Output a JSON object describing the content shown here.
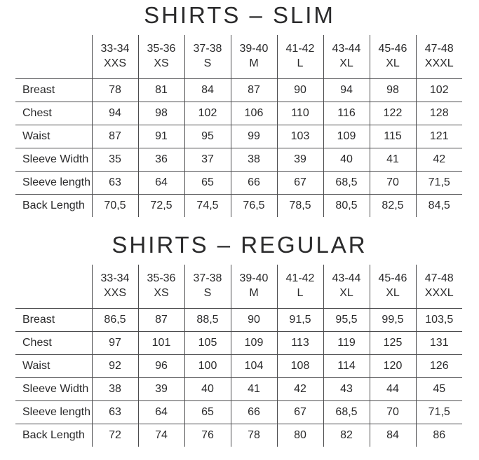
{
  "colors": {
    "background": "#ffffff",
    "text": "#2a2a2b",
    "rule_lines": "#4c4c4e"
  },
  "tables": [
    {
      "title": "SHIRTS – SLIM",
      "columns": [
        {
          "range": "33-34",
          "size": "XXS"
        },
        {
          "range": "35-36",
          "size": "XS"
        },
        {
          "range": "37-38",
          "size": "S"
        },
        {
          "range": "39-40",
          "size": "M"
        },
        {
          "range": "41-42",
          "size": "L"
        },
        {
          "range": "43-44",
          "size": "XL"
        },
        {
          "range": "45-46",
          "size": "XL"
        },
        {
          "range": "47-48",
          "size": "XXXL"
        }
      ],
      "rows": [
        {
          "label": "Breast",
          "values": [
            "78",
            "81",
            "84",
            "87",
            "90",
            "94",
            "98",
            "102"
          ]
        },
        {
          "label": "Chest",
          "values": [
            "94",
            "98",
            "102",
            "106",
            "110",
            "116",
            "122",
            "128"
          ]
        },
        {
          "label": "Waist",
          "values": [
            "87",
            "91",
            "95",
            "99",
            "103",
            "109",
            "115",
            "121"
          ]
        },
        {
          "label": "Sleeve Width",
          "values": [
            "35",
            "36",
            "37",
            "38",
            "39",
            "40",
            "41",
            "42"
          ]
        },
        {
          "label": "Sleeve length",
          "values": [
            "63",
            "64",
            "65",
            "66",
            "67",
            "68,5",
            "70",
            "71,5"
          ]
        },
        {
          "label": "Back Length",
          "values": [
            "70,5",
            "72,5",
            "74,5",
            "76,5",
            "78,5",
            "80,5",
            "82,5",
            "84,5"
          ]
        }
      ]
    },
    {
      "title": "SHIRTS – REGULAR",
      "columns": [
        {
          "range": "33-34",
          "size": "XXS"
        },
        {
          "range": "35-36",
          "size": "XS"
        },
        {
          "range": "37-38",
          "size": "S"
        },
        {
          "range": "39-40",
          "size": "M"
        },
        {
          "range": "41-42",
          "size": "L"
        },
        {
          "range": "43-44",
          "size": "XL"
        },
        {
          "range": "45-46",
          "size": "XL"
        },
        {
          "range": "47-48",
          "size": "XXXL"
        }
      ],
      "rows": [
        {
          "label": "Breast",
          "values": [
            "86,5",
            "87",
            "88,5",
            "90",
            "91,5",
            "95,5",
            "99,5",
            "103,5"
          ]
        },
        {
          "label": "Chest",
          "values": [
            "97",
            "101",
            "105",
            "109",
            "113",
            "119",
            "125",
            "131"
          ]
        },
        {
          "label": "Waist",
          "values": [
            "92",
            "96",
            "100",
            "104",
            "108",
            "114",
            "120",
            "126"
          ]
        },
        {
          "label": "Sleeve Width",
          "values": [
            "38",
            "39",
            "40",
            "41",
            "42",
            "43",
            "44",
            "45"
          ]
        },
        {
          "label": "Sleeve length",
          "values": [
            "63",
            "64",
            "65",
            "66",
            "67",
            "68,5",
            "70",
            "71,5"
          ]
        },
        {
          "label": "Back Length",
          "values": [
            "72",
            "74",
            "76",
            "78",
            "80",
            "82",
            "84",
            "86"
          ]
        }
      ]
    }
  ]
}
